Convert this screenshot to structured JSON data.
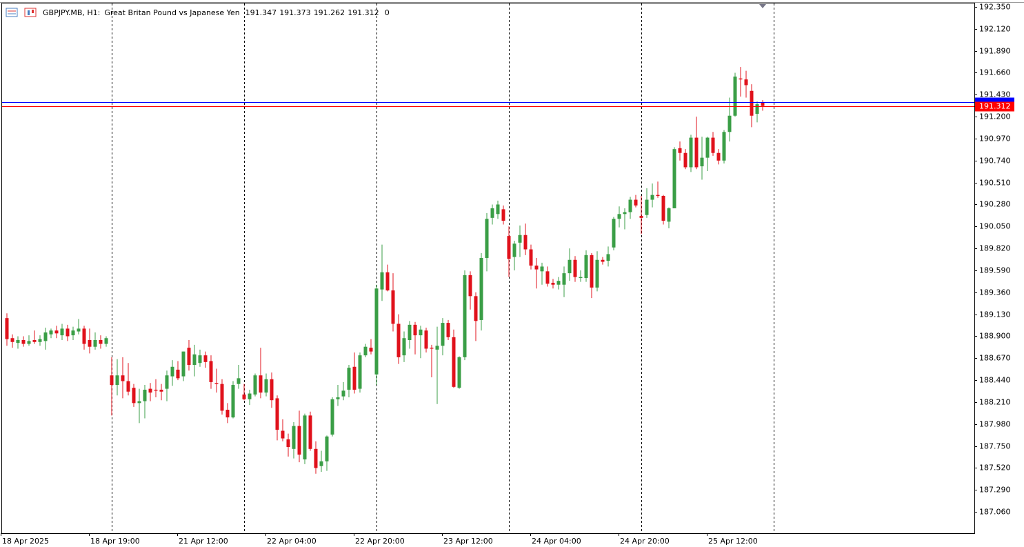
{
  "chart_data": {
    "type": "candlestick",
    "symbol": "GBPJPY.MB, H1:",
    "description": "Great Britan Pound vs Japanese Yen",
    "volume": "0",
    "categories": [
      "18 Apr 2025",
      null,
      null,
      null,
      null,
      null,
      null,
      null,
      null,
      null,
      null,
      null,
      null,
      null,
      null,
      null,
      "18 Apr 19:00",
      null,
      null,
      null,
      null,
      null,
      null,
      null,
      null,
      null,
      null,
      null,
      null,
      null,
      null,
      null,
      "21 Apr 12:00",
      null,
      null,
      null,
      null,
      null,
      null,
      null,
      null,
      null,
      null,
      null,
      null,
      null,
      null,
      null,
      "22 Apr 04:00",
      null,
      null,
      null,
      null,
      null,
      null,
      null,
      null,
      null,
      null,
      null,
      null,
      null,
      null,
      null,
      "22 Apr 20:00",
      null,
      null,
      null,
      null,
      null,
      null,
      null,
      null,
      null,
      null,
      null,
      null,
      null,
      null,
      null,
      "23 Apr 12:00",
      null,
      null,
      null,
      null,
      null,
      null,
      null,
      null,
      null,
      null,
      null,
      null,
      null,
      null,
      null,
      "24 Apr 04:00",
      null,
      null,
      null,
      null,
      null,
      null,
      null,
      null,
      null,
      null,
      null,
      null,
      null,
      null,
      null,
      "24 Apr 20:00",
      null,
      null,
      null,
      null,
      null,
      null,
      null,
      null,
      null,
      null,
      null,
      null,
      null,
      null,
      null,
      "25 Apr 12:00",
      null,
      null,
      null,
      null,
      null,
      null,
      null,
      null,
      null
    ],
    "open": [
      189.09,
      188.88,
      188.83,
      188.86,
      188.82,
      188.86,
      188.84,
      188.85,
      188.92,
      188.96,
      188.91,
      188.98,
      188.91,
      188.95,
      188.98,
      188.86,
      188.79,
      188.86,
      188.82,
      188.49,
      188.39,
      188.49,
      188.43,
      188.36,
      188.2,
      188.22,
      188.35,
      188.34,
      188.34,
      188.35,
      188.48,
      188.55,
      188.48,
      188.78,
      188.6,
      188.62,
      188.7,
      188.64,
      188.41,
      188.4,
      188.13,
      188.05,
      188.4,
      188.29,
      188.24,
      188.29,
      188.49,
      188.31,
      188.45,
      188.25,
      187.91,
      187.82,
      187.72,
      187.96,
      187.61,
      188.07,
      187.72,
      187.54,
      187.59,
      187.87,
      188.24,
      188.27,
      188.34,
      188.58,
      188.35,
      188.7,
      188.78,
      188.5,
      189.39,
      189.57,
      189.38,
      189.03,
      188.7,
      188.86,
      189.02,
      188.91,
      188.96,
      188.78,
      188.76,
      188.8,
      189.04,
      188.89,
      188.36,
      188.68,
      189.54,
      189.32,
      189.07,
      189.72,
      190.14,
      190.18,
      190.23,
      189.95,
      189.73,
      189.88,
      189.96,
      189.81,
      189.64,
      189.58,
      189.58,
      189.46,
      189.44,
      189.44,
      189.56,
      189.7,
      189.51,
      189.51,
      189.75,
      189.41,
      189.7,
      189.69,
      189.83,
      190.13,
      190.18,
      190.2,
      190.33,
      190.16,
      190.17,
      190.33,
      190.38,
      190.37,
      190.1,
      190.24,
      190.87,
      190.82,
      190.67,
      190.98,
      190.68,
      190.77,
      190.98,
      190.82,
      190.74,
      191.04,
      191.21,
      191.6,
      191.59,
      191.47,
      191.23,
      191.347
    ],
    "high": [
      189.14,
      188.92,
      188.9,
      188.9,
      188.91,
      188.96,
      188.91,
      188.99,
      188.98,
      189.01,
      189.03,
      189.02,
      189.0,
      189.08,
      189.01,
      188.98,
      188.94,
      188.91,
      188.9,
      188.68,
      188.66,
      188.68,
      188.62,
      188.4,
      188.35,
      188.39,
      188.41,
      188.45,
      188.4,
      188.54,
      188.65,
      188.64,
      188.74,
      188.86,
      188.81,
      188.76,
      188.74,
      188.7,
      188.56,
      188.45,
      188.2,
      188.43,
      188.6,
      188.4,
      188.34,
      188.51,
      188.78,
      188.51,
      188.52,
      188.28,
      188.03,
      187.88,
      188.0,
      188.12,
      188.09,
      188.11,
      187.8,
      187.7,
      187.86,
      188.26,
      188.39,
      188.42,
      188.6,
      188.73,
      188.73,
      188.82,
      188.87,
      189.44,
      189.86,
      189.65,
      189.56,
      189.13,
      188.95,
      189.06,
      189.05,
      189.01,
      188.99,
      188.81,
      189.0,
      189.09,
      189.07,
      188.97,
      188.69,
      189.59,
      189.58,
      189.36,
      189.77,
      190.19,
      190.28,
      190.32,
      190.27,
      190.05,
      189.9,
      190.06,
      190.08,
      189.86,
      189.72,
      189.67,
      189.63,
      189.5,
      189.52,
      189.63,
      189.82,
      189.74,
      189.59,
      189.8,
      189.77,
      189.79,
      189.73,
      189.84,
      190.15,
      190.26,
      190.24,
      190.36,
      190.38,
      190.37,
      190.45,
      190.5,
      190.52,
      190.38,
      190.25,
      190.88,
      190.94,
      190.86,
      191.01,
      191.2,
      190.99,
      190.99,
      191.04,
      190.86,
      191.06,
      191.4,
      191.66,
      191.72,
      191.68,
      191.54,
      191.36,
      191.373
    ],
    "low": [
      188.8,
      188.78,
      188.77,
      188.79,
      188.8,
      188.82,
      188.8,
      188.76,
      188.88,
      188.88,
      188.86,
      188.85,
      188.86,
      188.92,
      188.76,
      188.72,
      188.76,
      188.77,
      188.79,
      188.07,
      188.28,
      188.25,
      188.28,
      188.16,
      187.99,
      188.04,
      188.22,
      188.26,
      188.23,
      188.22,
      188.38,
      188.44,
      188.43,
      188.54,
      188.48,
      188.58,
      188.57,
      188.35,
      188.31,
      188.08,
      187.99,
      188.04,
      188.35,
      188.23,
      188.18,
      188.27,
      188.25,
      188.27,
      188.15,
      187.81,
      187.8,
      187.64,
      187.62,
      187.58,
      187.56,
      187.7,
      187.46,
      187.48,
      187.49,
      187.85,
      188.17,
      188.23,
      188.26,
      188.3,
      188.31,
      188.68,
      188.71,
      188.39,
      189.27,
      189.37,
      188.95,
      188.61,
      188.63,
      188.77,
      188.71,
      188.67,
      188.73,
      188.47,
      188.19,
      188.7,
      188.86,
      188.36,
      188.35,
      188.65,
      189.18,
      188.85,
      188.96,
      189.58,
      190.07,
      190.13,
      190.07,
      189.52,
      189.59,
      189.73,
      189.75,
      189.6,
      189.4,
      189.44,
      189.42,
      189.4,
      189.39,
      189.31,
      189.48,
      189.47,
      189.47,
      189.47,
      189.3,
      189.37,
      189.65,
      189.63,
      189.8,
      190.04,
      190.02,
      190.13,
      190.25,
      189.97,
      190.14,
      190.25,
      190.35,
      190.07,
      190.03,
      190.24,
      190.74,
      190.65,
      190.62,
      190.65,
      190.54,
      190.63,
      190.79,
      190.7,
      190.71,
      190.94,
      191.2,
      191.41,
      191.4,
      191.09,
      191.14,
      191.262
    ],
    "close": [
      188.87,
      188.84,
      188.86,
      188.82,
      188.85,
      188.84,
      188.87,
      188.94,
      188.96,
      188.93,
      188.98,
      188.9,
      188.96,
      188.98,
      188.82,
      188.79,
      188.86,
      188.82,
      188.88,
      188.39,
      188.49,
      188.43,
      188.32,
      188.2,
      188.22,
      188.34,
      188.31,
      188.33,
      188.32,
      188.49,
      188.58,
      188.46,
      188.74,
      188.6,
      188.71,
      188.7,
      188.63,
      188.42,
      188.4,
      188.12,
      188.05,
      188.39,
      188.46,
      188.24,
      188.3,
      188.49,
      188.31,
      188.45,
      188.23,
      187.92,
      187.83,
      187.74,
      187.96,
      187.66,
      188.07,
      187.72,
      187.52,
      187.59,
      187.85,
      188.24,
      188.26,
      188.33,
      188.57,
      188.34,
      188.7,
      188.79,
      188.74,
      189.4,
      189.57,
      189.38,
      189.03,
      188.68,
      188.88,
      189.02,
      188.91,
      188.97,
      188.77,
      188.77,
      188.8,
      189.04,
      188.89,
      188.37,
      188.68,
      189.54,
      189.32,
      189.06,
      189.72,
      190.13,
      190.24,
      190.28,
      190.11,
      189.71,
      189.87,
      189.96,
      189.81,
      189.64,
      189.6,
      189.63,
      189.45,
      189.44,
      189.48,
      189.56,
      189.7,
      189.52,
      189.52,
      189.75,
      189.41,
      189.7,
      189.68,
      189.76,
      190.13,
      190.18,
      190.2,
      190.33,
      190.27,
      190.14,
      190.33,
      190.38,
      190.37,
      190.11,
      190.24,
      190.86,
      190.82,
      190.67,
      190.98,
      190.67,
      190.77,
      190.98,
      190.82,
      190.74,
      191.04,
      191.21,
      191.62,
      191.59,
      191.53,
      191.21,
      191.33,
      191.312
    ],
    "up_color": "#3a9e46",
    "down_color": "#e0111b",
    "ylim": [
      186.837,
      192.393
    ],
    "yticks": [
      {
        "value": 192.35,
        "label": "192.350"
      },
      {
        "value": 192.12,
        "label": "192.120"
      },
      {
        "value": 191.89,
        "label": "191.890"
      },
      {
        "value": 191.66,
        "label": "191.660"
      },
      {
        "value": 191.43,
        "label": "191.430"
      },
      {
        "value": 191.2,
        "label": "191.200"
      },
      {
        "value": 190.97,
        "label": "190.970"
      },
      {
        "value": 190.74,
        "label": "190.740"
      },
      {
        "value": 190.51,
        "label": "190.510"
      },
      {
        "value": 190.28,
        "label": "190.280"
      },
      {
        "value": 190.05,
        "label": "190.050"
      },
      {
        "value": 189.82,
        "label": "189.820"
      },
      {
        "value": 189.59,
        "label": "189.590"
      },
      {
        "value": 189.36,
        "label": "189.360"
      },
      {
        "value": 189.13,
        "label": "189.130"
      },
      {
        "value": 188.9,
        "label": "188.900"
      },
      {
        "value": 188.67,
        "label": "188.670"
      },
      {
        "value": 188.44,
        "label": "188.440"
      },
      {
        "value": 188.21,
        "label": "188.210"
      },
      {
        "value": 187.98,
        "label": "187.980"
      },
      {
        "value": 187.75,
        "label": "187.750"
      },
      {
        "value": 187.52,
        "label": "187.520"
      },
      {
        "value": 187.29,
        "label": "187.290"
      },
      {
        "value": 187.06,
        "label": "187.060"
      }
    ],
    "day_separators": [
      19,
      43,
      67,
      91,
      115,
      139
    ],
    "price_lines": [
      {
        "value": 191.353,
        "color": "#0000ff"
      },
      {
        "value": 191.312,
        "color": "#ff0000"
      }
    ]
  }
}
